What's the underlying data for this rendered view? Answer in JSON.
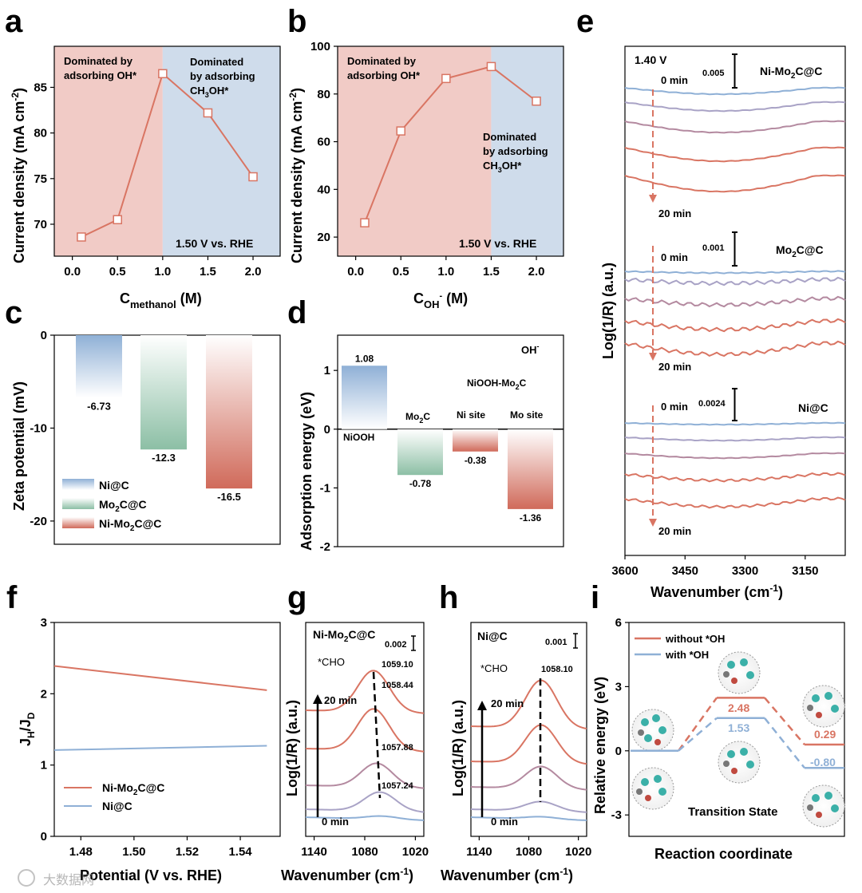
{
  "panel_letters": [
    "a",
    "b",
    "c",
    "d",
    "e",
    "f",
    "g",
    "h",
    "i"
  ],
  "colors": {
    "salmon": "#d97563",
    "blue": "#8fb0d6",
    "pink_bg": "#f1cbc6",
    "blue_bg": "#cfdceb",
    "green": "#8cbfa5",
    "red": "#d06a5a",
    "lavender": "#a9a3c6",
    "purple": "#b48aa0"
  },
  "chart_data": [
    {
      "panel": "a",
      "type": "line",
      "xlabel_main": "C",
      "xlabel_sub": "methanol",
      "xlabel_unit": " (M)",
      "ylabel": "Current density (mA cm",
      "ylabel_sup": "-2",
      "ylabel_end": ")",
      "x": [
        0.1,
        0.5,
        1.0,
        1.5,
        2.0
      ],
      "y": [
        68.6,
        70.5,
        86.5,
        82.2,
        75.2
      ],
      "xlim": [
        -0.2,
        2.3
      ],
      "ylim": [
        66.5,
        89.5
      ],
      "xticks": [
        "0.0",
        "0.5",
        "1.0",
        "1.5",
        "2.0"
      ],
      "yticks": [
        "70",
        "75",
        "80",
        "85"
      ],
      "regions": [
        {
          "from": -0.2,
          "to": 1.0,
          "color": "pink"
        },
        {
          "from": 1.0,
          "to": 2.3,
          "color": "blue"
        }
      ],
      "annotations": [
        "Dominated by",
        "adsorbing OH*",
        "Dominated",
        "by adsorbing",
        "CH",
        "OH*"
      ],
      "condition": "1.50 V vs. RHE"
    },
    {
      "panel": "b",
      "type": "line",
      "xlabel_main": "C",
      "xlabel_sub": "OH",
      "xlabel_sup": "-",
      "xlabel_unit": " (M)",
      "ylabel": "Current density (mA cm",
      "ylabel_sup": "-2",
      "ylabel_end": ")",
      "x": [
        0.1,
        0.5,
        1.0,
        1.5,
        2.0
      ],
      "y": [
        26,
        64.5,
        86.5,
        91.5,
        77
      ],
      "xlim": [
        -0.2,
        2.3
      ],
      "ylim": [
        12,
        100
      ],
      "xticks": [
        "0.0",
        "0.5",
        "1.0",
        "1.5",
        "2.0"
      ],
      "yticks": [
        "20",
        "40",
        "60",
        "80",
        "100"
      ],
      "regions": [
        {
          "from": -0.2,
          "to": 1.5,
          "color": "pink"
        },
        {
          "from": 1.5,
          "to": 2.3,
          "color": "blue"
        }
      ],
      "annotations": [
        "Dominated by",
        "adsorbing OH*",
        "Dominated",
        "by adsorbing",
        "CH",
        "OH*"
      ],
      "condition": "1.50 V vs. RHE"
    },
    {
      "panel": "c",
      "type": "bar",
      "ylabel": "Zeta potential (mV)",
      "categories": [
        "Ni@C",
        "Mo2C@C",
        "Ni-Mo2C@C"
      ],
      "values": [
        -6.73,
        -12.3,
        -16.5
      ],
      "labels": [
        "-6.73",
        "-12.3",
        "-16.5"
      ],
      "ylim": [
        -22.5,
        0
      ],
      "yticks": [
        "0",
        "-10",
        "-20"
      ],
      "legend": [
        "Ni@C",
        "Mo",
        "C@C",
        "Ni-Mo",
        "C@C"
      ]
    },
    {
      "panel": "d",
      "type": "bar",
      "ylabel": "Adsorption energy (eV)",
      "categories": [
        "NiOOH",
        "Mo2C",
        "Ni site",
        "Mo site"
      ],
      "values": [
        1.08,
        -0.78,
        -0.38,
        -1.36
      ],
      "labels": [
        "1.08",
        "-0.78",
        "-0.38",
        "-1.36"
      ],
      "cat_labels": [
        "NiOOH",
        "Mo",
        "C",
        "Ni site",
        "Mo site"
      ],
      "ylim": [
        -2,
        1.6
      ],
      "yticks": [
        "1",
        "0",
        "-1",
        "-2"
      ],
      "annotations": [
        "OH",
        "-",
        "NiOOH-Mo",
        "C"
      ]
    },
    {
      "panel": "e",
      "type": "line",
      "xlabel": "Wavenumber (cm",
      "xlabel_sup": "-1",
      "xlabel_end": ")",
      "ylabel": "Log(1/R) (a.u.)",
      "xlim": [
        3600,
        3050
      ],
      "xticks": [
        "3600",
        "3450",
        "3300",
        "3150"
      ],
      "potential": "1.40 V",
      "groups": [
        {
          "name": "Ni-Mo",
          "name_sub": "2",
          "name_end": "C@C",
          "scale": "0.005",
          "start": "0 min",
          "end": "20 min"
        },
        {
          "name": "Mo",
          "name_sub": "2",
          "name_end": "C@C",
          "scale": "0.001",
          "start": "0 min",
          "end": "20 min"
        },
        {
          "name": "Ni@C",
          "scale": "0.0024",
          "start": "0 min",
          "end": "20 min"
        }
      ]
    },
    {
      "panel": "f",
      "type": "line",
      "xlabel": "Potential (V vs. RHE)",
      "ylabel_main": "J",
      "x": [
        1.47,
        1.55
      ],
      "series": [
        {
          "name": "Ni-Mo2C@C",
          "values": [
            2.39,
            2.05
          ]
        },
        {
          "name": "Ni@C",
          "values": [
            1.21,
            1.27
          ]
        }
      ],
      "xlim": [
        1.47,
        1.555
      ],
      "ylim": [
        0,
        3
      ],
      "xticks": [
        "1.48",
        "1.50",
        "1.52",
        "1.54"
      ],
      "yticks": [
        "0",
        "1",
        "2",
        "3"
      ],
      "legend": [
        "Ni-Mo",
        "C@C",
        "Ni@C"
      ]
    },
    {
      "panel": "g",
      "type": "line",
      "title_main": "Ni-Mo",
      "title_end": "C@C",
      "xlabel": "Wavenumber (cm",
      "xlabel_sup": "-1",
      "xlabel_end": ")",
      "ylabel": "Log(1/R) (a.u.)",
      "scale": "0.002",
      "species": "*CHO",
      "peak_positions": [
        "1059.10",
        "1058.44",
        "1057.88",
        "1057.24"
      ],
      "time_start": "0 min",
      "time_end": "20 min",
      "xticks": [
        "1140",
        "1080",
        "1020"
      ]
    },
    {
      "panel": "h",
      "type": "line",
      "title": "Ni@C",
      "xlabel": "Wavenumber (cm",
      "xlabel_sup": "-1",
      "xlabel_end": ")",
      "ylabel": "Log(1/R) (a.u.)",
      "scale": "0.001",
      "species": "*CHO",
      "peak_positions": [
        "1058.10"
      ],
      "time_start": "0 min",
      "time_end": "20 min",
      "xticks": [
        "1140",
        "1080",
        "1020"
      ]
    },
    {
      "panel": "i",
      "type": "line",
      "xlabel": "Reaction coordinate",
      "ylabel": "Relative energy (eV)",
      "series": [
        {
          "name": "without *OH",
          "values": [
            0,
            2.48,
            0.29
          ]
        },
        {
          "name": "with *OH",
          "values": [
            0,
            1.53,
            -0.8
          ]
        }
      ],
      "value_labels": [
        "2.48",
        "1.53",
        "0.29",
        "-0.80"
      ],
      "ylim": [
        -4,
        6
      ],
      "yticks": [
        "6",
        "3",
        "0",
        "-3"
      ],
      "annotation": "Transition State"
    }
  ],
  "watermark": "大数据网"
}
